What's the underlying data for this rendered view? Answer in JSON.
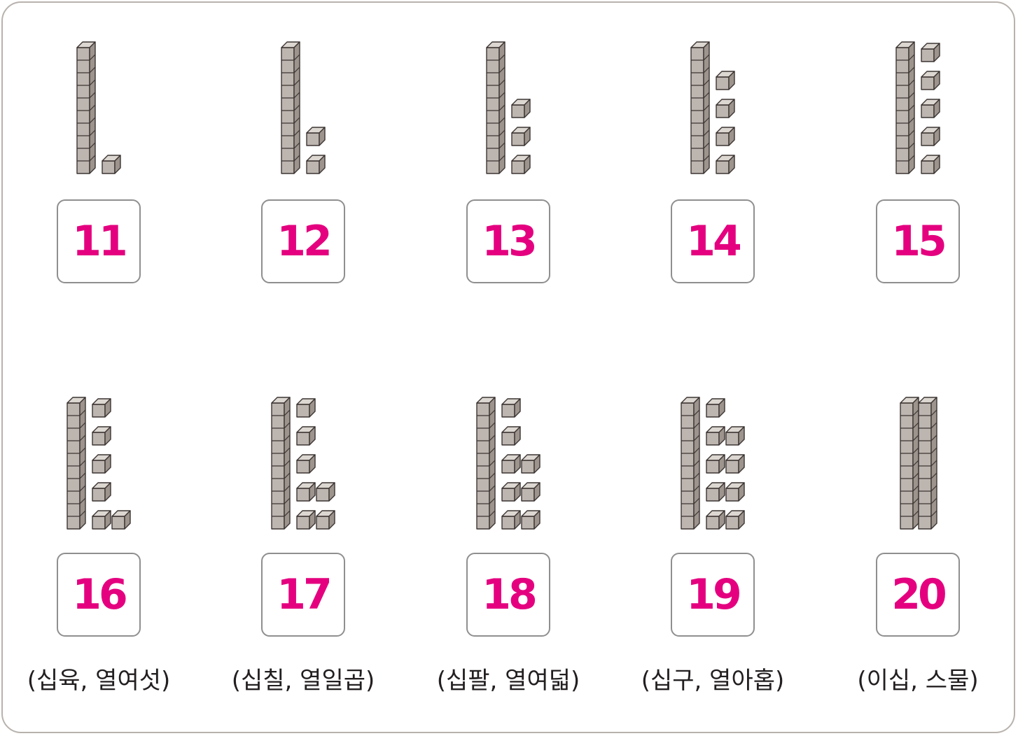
{
  "colors": {
    "number": "#e4007f",
    "cube_front": "#bdb5af",
    "cube_top": "#ddd7d2",
    "cube_side": "#9d948d",
    "cube_edge": "#3c3533",
    "border": "#b8b2ad"
  },
  "cards": [
    {
      "number": "11",
      "reading": "",
      "tens": 1,
      "ones": 1
    },
    {
      "number": "12",
      "reading": "",
      "tens": 1,
      "ones": 2
    },
    {
      "number": "13",
      "reading": "",
      "tens": 1,
      "ones": 3
    },
    {
      "number": "14",
      "reading": "",
      "tens": 1,
      "ones": 4
    },
    {
      "number": "15",
      "reading": "",
      "tens": 1,
      "ones": 5
    },
    {
      "number": "16",
      "reading": "(십육, 열여섯)",
      "tens": 1,
      "ones": 6
    },
    {
      "number": "17",
      "reading": "(십칠, 열일곱)",
      "tens": 1,
      "ones": 7
    },
    {
      "number": "18",
      "reading": "(십팔, 열여덟)",
      "tens": 1,
      "ones": 8
    },
    {
      "number": "19",
      "reading": "(십구, 열아홉)",
      "tens": 1,
      "ones": 9
    },
    {
      "number": "20",
      "reading": "(이십, 스물)",
      "tens": 2,
      "ones": 0
    }
  ]
}
